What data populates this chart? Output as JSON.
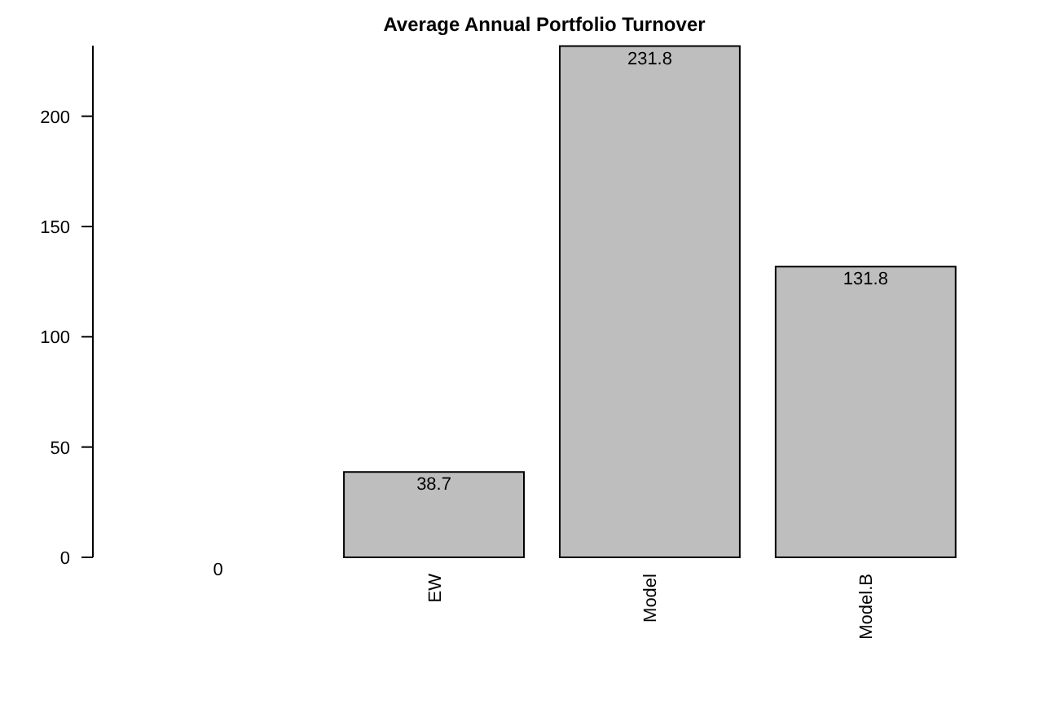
{
  "chart_data": {
    "type": "bar",
    "title": "Average Annual Portfolio Turnover",
    "categories": [
      null,
      "EW",
      "Model",
      "Model.B"
    ],
    "values": [
      0,
      38.7,
      231.8,
      131.8
    ],
    "color": "#bebebe",
    "ylim": [
      0,
      232
    ],
    "yticks": [
      0,
      50,
      100,
      150,
      200
    ],
    "data_labels": true,
    "grid": false
  }
}
